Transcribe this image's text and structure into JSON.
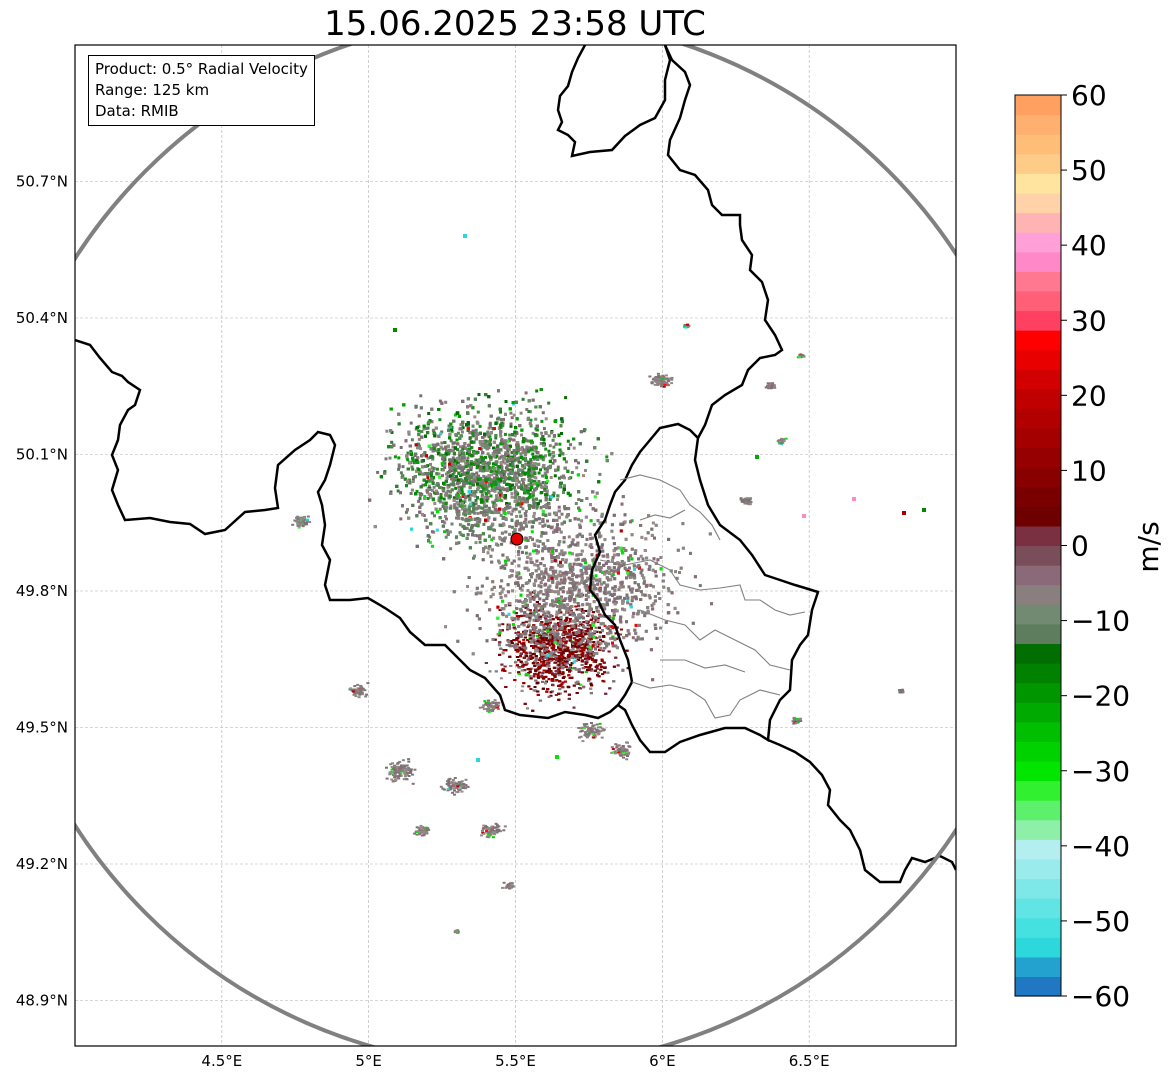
{
  "title": "15.06.2025 23:58 UTC",
  "info": {
    "product": "Product: 0.5° Radial Velocity",
    "range": "Range: 125 km",
    "data": "Data: RMIB"
  },
  "axes": {
    "lon_ticks": [
      "4.5°E",
      "5°E",
      "5.5°E",
      "6°E",
      "6.5°E"
    ],
    "lat_ticks": [
      "50.7°N",
      "50.4°N",
      "50.1°N",
      "49.8°N",
      "49.5°N",
      "49.2°N",
      "48.9°N"
    ],
    "lon_values": [
      4.5,
      5.0,
      5.5,
      6.0,
      6.5
    ],
    "lat_values": [
      50.7,
      50.4,
      50.1,
      49.8,
      49.5,
      49.2,
      48.9
    ],
    "lon_range": [
      4.0,
      7.0
    ],
    "lat_range": [
      48.8,
      51.0
    ]
  },
  "radar_site": {
    "lon": 5.505,
    "lat": 49.914,
    "color": "#e00000"
  },
  "range_ring_color": "#808080",
  "colorbar": {
    "unit": "m/s",
    "range": [
      -60,
      60
    ],
    "ticks": [
      "60",
      "50",
      "40",
      "30",
      "20",
      "10",
      "0",
      "−10",
      "−20",
      "−30",
      "−40",
      "−50",
      "−60"
    ],
    "colors": [
      "#1f78c1",
      "#23a2d0",
      "#2dd8dd",
      "#45e0e0",
      "#60e4e4",
      "#7ee8e8",
      "#9aecec",
      "#b4efef",
      "#8ef0a8",
      "#5cf06c",
      "#30f030",
      "#00e600",
      "#00d200",
      "#00be00",
      "#00aa00",
      "#009600",
      "#008200",
      "#006e00",
      "#5e7d5e",
      "#728a72",
      "#8a7f7f",
      "#8a6a78",
      "#7a4d5a",
      "#7a3040",
      "#6e0000",
      "#7a0000",
      "#880000",
      "#960000",
      "#a40000",
      "#b20000",
      "#c00000",
      "#d20000",
      "#e80000",
      "#ff0000",
      "#ff4060",
      "#ff6078",
      "#ff7890",
      "#ff88c8",
      "#ffa0d8",
      "#ffb4b4",
      "#ffd2a8",
      "#ffe4a0",
      "#ffcc88",
      "#ffbe78",
      "#ffb070",
      "#ffa060"
    ]
  }
}
